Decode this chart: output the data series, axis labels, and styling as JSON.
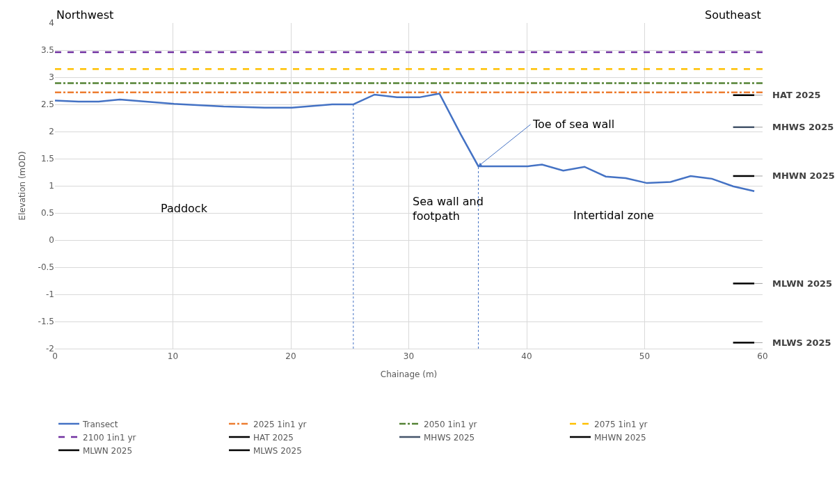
{
  "chart_data": {
    "type": "line",
    "xlabel": "Chainage (m)",
    "ylabel": "Elevation (mOD)",
    "xlim": [
      0,
      60
    ],
    "xticks": [
      0,
      10,
      20,
      30,
      40,
      50,
      60
    ],
    "ylim": [
      -2,
      4
    ],
    "yticks": [
      -2,
      -1.5,
      -1,
      -0.5,
      0,
      0.5,
      1,
      1.5,
      2,
      2.5,
      3,
      3.5,
      4
    ],
    "grid": true,
    "legend": "bottom",
    "marker": "none",
    "series": [
      {
        "name": "Transect",
        "color": "#4472c4",
        "line_style": "solid",
        "x": [
          0,
          2.0,
          3.7,
          5.5,
          10.1,
          14.3,
          17.8,
          20.1,
          23.5,
          25.3,
          27.1,
          29.0,
          30.9,
          32.6,
          34.4,
          35.9,
          40.1,
          41.3,
          43.1,
          44.9,
          46.7,
          48.4,
          50.2,
          52.2,
          53.9,
          55.7,
          57.5,
          59.3
        ],
        "values": [
          2.57,
          2.55,
          2.55,
          2.59,
          2.51,
          2.46,
          2.44,
          2.44,
          2.5,
          2.5,
          2.68,
          2.63,
          2.63,
          2.7,
          1.95,
          1.36,
          1.36,
          1.39,
          1.28,
          1.35,
          1.17,
          1.14,
          1.05,
          1.07,
          1.18,
          1.13,
          0.99,
          0.9
        ]
      },
      {
        "name": "2025 1in1 yr",
        "color": "#ed7d31",
        "line_style": "dashdot",
        "x": [
          0,
          60
        ],
        "values": [
          2.72,
          2.72
        ]
      },
      {
        "name": "2050 1in1 yr",
        "color": "#548235",
        "line_style": "dashdot",
        "x": [
          0,
          60
        ],
        "values": [
          2.89,
          2.89
        ]
      },
      {
        "name": "2075 1in1 yr",
        "color": "#ffc000",
        "line_style": "dashed",
        "x": [
          0,
          60
        ],
        "values": [
          3.15,
          3.15
        ]
      },
      {
        "name": "2100 1in1 yr",
        "color": "#7030a0",
        "line_style": "dashed",
        "x": [
          0,
          60
        ],
        "values": [
          3.46,
          3.46
        ]
      },
      {
        "name": "HAT 2025",
        "color": "#000000",
        "line_style": "solid",
        "x": [
          57.5,
          59.3
        ],
        "values": [
          2.67,
          2.67
        ]
      },
      {
        "name": "MHWS 2025",
        "color": "#44546a",
        "line_style": "solid",
        "x": [
          57.5,
          59.3
        ],
        "values": [
          2.08,
          2.08
        ]
      },
      {
        "name": "MHWN 2025",
        "color": "#000000",
        "line_style": "solid",
        "x": [
          57.5,
          59.3
        ],
        "values": [
          1.18,
          1.18
        ]
      },
      {
        "name": "MLWN 2025",
        "color": "#000000",
        "line_style": "solid",
        "x": [
          57.5,
          59.3
        ],
        "values": [
          -0.8,
          -0.8
        ]
      },
      {
        "name": "MLWS 2025",
        "color": "#000000",
        "line_style": "solid",
        "x": [
          57.5,
          59.3
        ],
        "values": [
          -1.89,
          -1.89
        ]
      },
      {
        "color": "#4472c4",
        "line_style": "dotted",
        "x": [
          25.3,
          25.3
        ],
        "values": [
          -2,
          2.5
        ]
      },
      {
        "color": "#4472c4",
        "line_style": "dotted",
        "x": [
          35.9,
          35.9
        ],
        "values": [
          -2,
          1.36
        ]
      }
    ],
    "annotations": [
      "Northwest",
      "Southeast",
      "Paddock",
      "Sea wall and\nfootpath",
      "Intertidal zone",
      {
        "text": "Toe of sea wall",
        "x": 35.9,
        "y": 1.36
      }
    ]
  }
}
